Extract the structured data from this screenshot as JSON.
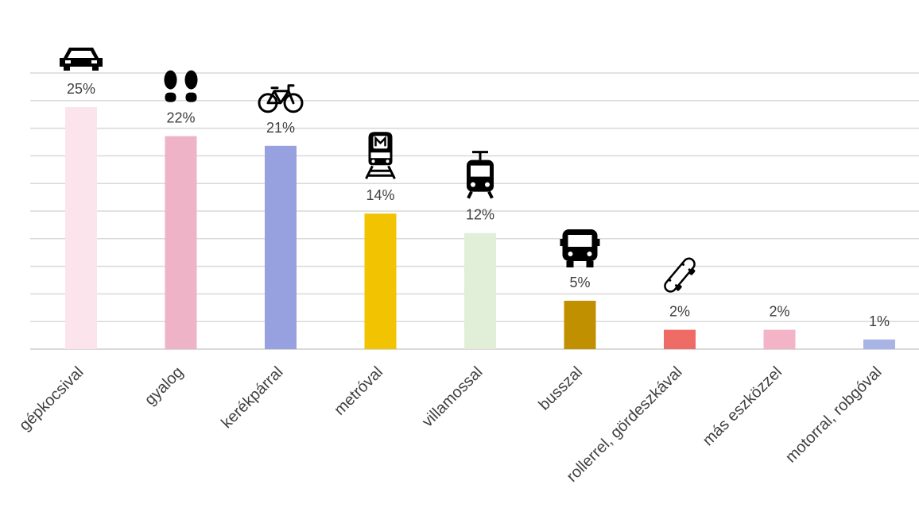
{
  "chart_data": {
    "type": "bar",
    "categories": [
      "gépkocsival",
      "gyalog",
      "kerékpárral",
      "metróval",
      "villamossal",
      "busszal",
      "rollerrel, gördeszkával",
      "más eszközzel",
      "motorral, robgóval"
    ],
    "values": [
      25,
      22,
      21,
      14,
      12,
      5,
      2,
      2,
      1
    ],
    "labels": [
      "25%",
      "22%",
      "21%",
      "14%",
      "12%",
      "5%",
      "2%",
      "2%",
      "1%"
    ],
    "colors": [
      "#fbe4ec",
      "#efb3c8",
      "#98a1e0",
      "#f2c300",
      "#e2efd8",
      "#c09000",
      "#ef6b66",
      "#f2b4c6",
      "#a9b4e6"
    ],
    "icons": [
      "car-icon",
      "footprints-icon",
      "bicycle-icon",
      "metro-icon",
      "tram-icon",
      "bus-icon",
      "skateboard-icon",
      null,
      null
    ],
    "ylim": [
      0,
      30
    ],
    "grid": true,
    "title": "",
    "xlabel": "",
    "ylabel": ""
  }
}
